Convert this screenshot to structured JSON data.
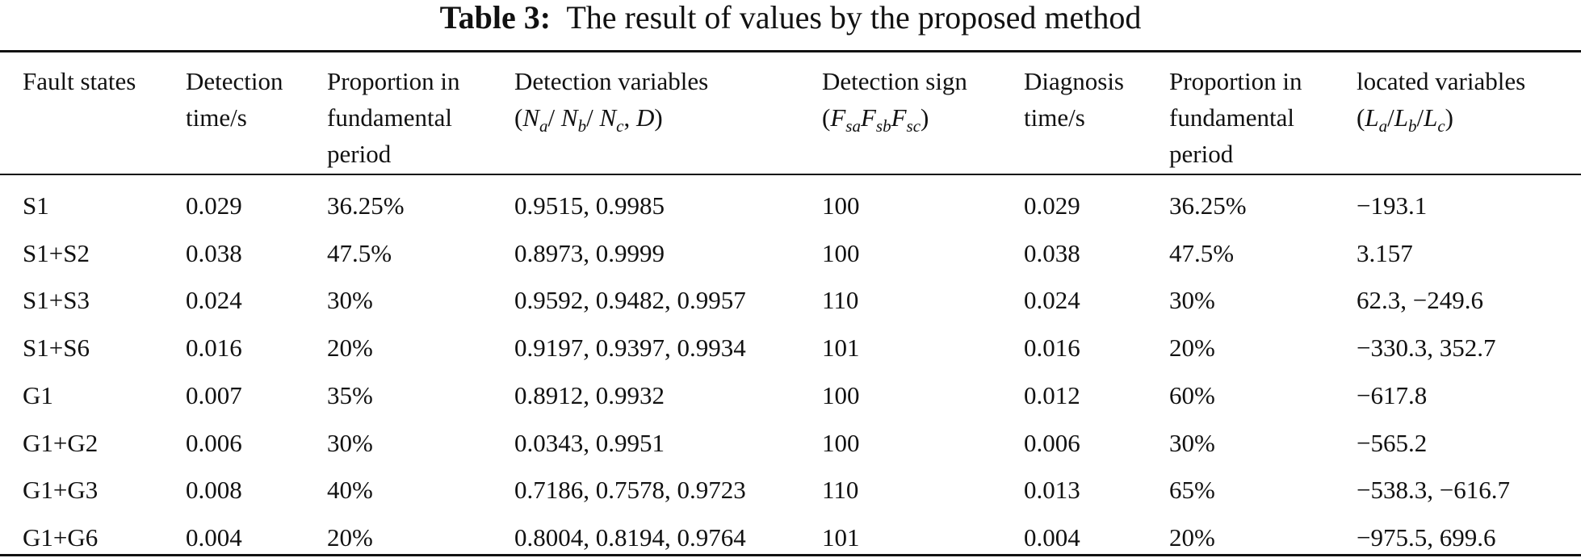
{
  "caption": {
    "label": "Table 3:",
    "text": "The result of values by the proposed method"
  },
  "headers": [
    [
      "Fault states"
    ],
    [
      "Detection",
      "time/s"
    ],
    [
      "Proportion in",
      "fundamental",
      "period"
    ],
    [
      "Detection variables",
      "(Na/ Nb/ Nc, D)"
    ],
    [
      "Detection sign",
      "(FsaFsbFsc)"
    ],
    [
      "Diagnosis",
      "time/s"
    ],
    [
      "Proportion in",
      "fundamental",
      "period"
    ],
    [
      "located variables",
      "(La/Lb/Lc)"
    ]
  ],
  "rows": [
    [
      "S1",
      "0.029",
      "36.25%",
      "0.9515, 0.9985",
      "100",
      "0.029",
      "36.25%",
      "−193.1"
    ],
    [
      "S1+S2",
      "0.038",
      "47.5%",
      "0.8973, 0.9999",
      "100",
      "0.038",
      "47.5%",
      "3.157"
    ],
    [
      "S1+S3",
      "0.024",
      "30%",
      "0.9592, 0.9482, 0.9957",
      "110",
      "0.024",
      "30%",
      "62.3, −249.6"
    ],
    [
      "S1+S6",
      "0.016",
      "20%",
      "0.9197, 0.9397, 0.9934",
      "101",
      "0.016",
      "20%",
      "−330.3, 352.7"
    ],
    [
      "G1",
      "0.007",
      "35%",
      "0.8912, 0.9932",
      "100",
      "0.012",
      "60%",
      "−617.8"
    ],
    [
      "G1+G2",
      "0.006",
      "30%",
      "0.0343, 0.9951",
      "100",
      "0.006",
      "30%",
      "−565.2"
    ],
    [
      "G1+G3",
      "0.008",
      "40%",
      "0.7186, 0.7578, 0.9723",
      "110",
      "0.013",
      "65%",
      "−538.3, −616.7"
    ],
    [
      "G1+G6",
      "0.004",
      "20%",
      "0.8004, 0.8194, 0.9764",
      "101",
      "0.004",
      "20%",
      "−975.5, 699.6"
    ]
  ]
}
